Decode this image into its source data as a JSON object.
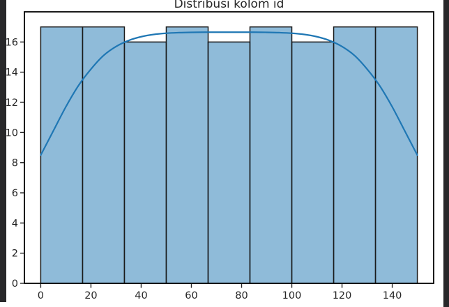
{
  "chart_data": {
    "type": "histogram",
    "title": "Distribusi kolom id",
    "xlabel": "",
    "ylabel": "",
    "xlim": [
      -6.5,
      156.5
    ],
    "ylim": [
      0,
      18
    ],
    "x_ticks": [
      0,
      20,
      40,
      60,
      80,
      100,
      120,
      140
    ],
    "y_ticks": [
      0,
      2,
      4,
      6,
      8,
      10,
      12,
      14,
      16
    ],
    "bin_edges": [
      0,
      16.67,
      33.33,
      50,
      66.67,
      83.33,
      100,
      116.67,
      133.33,
      150
    ],
    "counts": [
      17,
      17,
      16,
      17,
      16,
      17,
      16,
      17,
      17
    ],
    "kde_line": {
      "x": [
        0,
        5,
        10,
        15,
        20,
        25,
        30,
        35,
        40,
        45,
        50,
        55,
        60,
        65,
        70,
        75,
        80,
        85,
        90,
        95,
        100,
        105,
        110,
        115,
        120,
        125,
        130,
        135,
        140,
        145,
        150
      ],
      "y": [
        8.5,
        10.1,
        11.7,
        13.1,
        14.2,
        15.1,
        15.7,
        16.1,
        16.35,
        16.5,
        16.58,
        16.62,
        16.64,
        16.65,
        16.65,
        16.65,
        16.65,
        16.65,
        16.64,
        16.62,
        16.58,
        16.5,
        16.35,
        16.1,
        15.7,
        15.1,
        14.2,
        13.1,
        11.7,
        10.1,
        8.5
      ]
    },
    "grid": false,
    "legend": null,
    "colors": {
      "bar_fill": "#1f77b4",
      "bar_fill_opacity": 0.5,
      "bar_edge": "#1a1a1a",
      "kde_line": "#1f77b4",
      "spine": "#000000",
      "text": "#262626",
      "figure_bg": "#ffffff",
      "window_bg": "#28282a"
    }
  }
}
